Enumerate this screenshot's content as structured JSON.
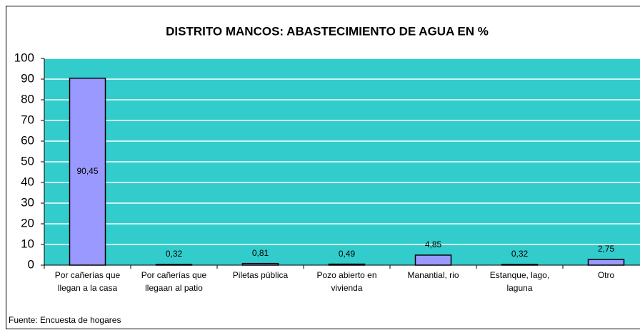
{
  "chart_data": {
    "type": "bar",
    "title": "DISTRITO MANCOS: ABASTECIMIENTO DE AGUA EN %",
    "categories": [
      "Por cañerías que\nllegan a la casa",
      "Por cañerías que\nllegaan al patio",
      "Piletas pública",
      "Pozo abierto en\nvivienda",
      "Manantial, rio",
      "Estanque, lago,\nlaguna",
      "Otro"
    ],
    "values": [
      90.45,
      0.32,
      0.81,
      0.49,
      4.85,
      0.32,
      2.75
    ],
    "value_labels": [
      "90,45",
      "0,32",
      "0,81",
      "0,49",
      "4,85",
      "0,32",
      "2,75"
    ],
    "color": "#9999ff",
    "background": "#33cccc",
    "ylim": [
      0,
      100
    ],
    "yticks": [
      0,
      10,
      20,
      30,
      40,
      50,
      60,
      70,
      80,
      90,
      100
    ],
    "grid": true,
    "note": "Fuente: Encuesta de hogares"
  }
}
